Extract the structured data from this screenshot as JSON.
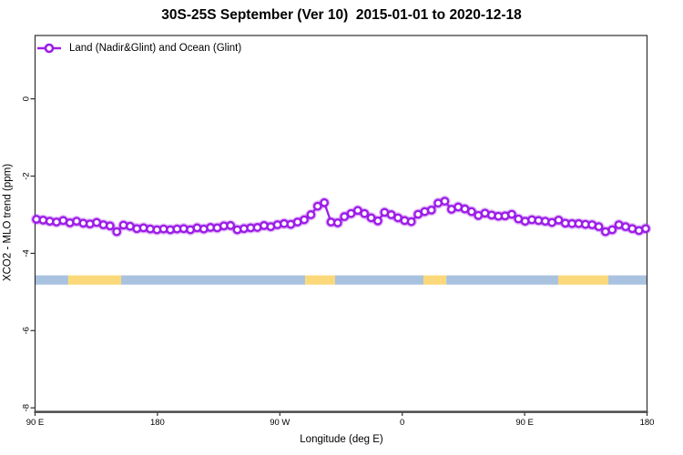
{
  "title": "30S-25S September (Ver 10)  2015-01-01 to 2020-12-18",
  "legend": {
    "label": "Land (Nadir&Glint) and Ocean (Glint)"
  },
  "colors": {
    "line": "#9D1DE8",
    "marker_fill": "#FFFFFF",
    "marker_halo": "rgba(157,29,232,0.28)",
    "band_blue": "#A9C2DF",
    "band_yellow": "#FBD97B",
    "axis": "#2E2E2E",
    "bottom_axis": "#4A4A4A"
  },
  "chart_data": {
    "type": "line",
    "title": "30S-25S September (Ver 10)  2015-01-01 to 2020-12-18",
    "xlabel": "Longitude (deg E)",
    "ylabel": "XCO2 - MLO trend (ppm)",
    "legend_position": "top-left",
    "grid": false,
    "x_axis": {
      "label": "Longitude (deg E)",
      "range": [
        0,
        450
      ],
      "ticks": [
        {
          "pos": 0,
          "label": "90 E"
        },
        {
          "pos": 90,
          "label": "180"
        },
        {
          "pos": 180,
          "label": "90 W"
        },
        {
          "pos": 270,
          "label": "0"
        },
        {
          "pos": 360,
          "label": "90 E"
        },
        {
          "pos": 450,
          "label": "180"
        }
      ]
    },
    "y_axis": {
      "label": "XCO2 - MLO trend (ppm)",
      "range": [
        -8.09,
        1.64
      ],
      "ticks": [
        0,
        -2,
        -4,
        -6,
        -8
      ],
      "tick_labels": [
        "0",
        "-2",
        "-4",
        "-6",
        "-8"
      ]
    },
    "series": [
      {
        "name": "Land (Nadir&Glint) and Ocean (Glint)",
        "color": "#9D1DE8",
        "marker": "open-circle",
        "x_start": 1.0,
        "x_step": 4.923,
        "values": [
          -3.12,
          -3.14,
          -3.17,
          -3.19,
          -3.15,
          -3.21,
          -3.17,
          -3.22,
          -3.24,
          -3.2,
          -3.26,
          -3.29,
          -3.44,
          -3.27,
          -3.3,
          -3.36,
          -3.34,
          -3.37,
          -3.39,
          -3.37,
          -3.39,
          -3.37,
          -3.36,
          -3.39,
          -3.34,
          -3.37,
          -3.33,
          -3.34,
          -3.29,
          -3.28,
          -3.39,
          -3.36,
          -3.34,
          -3.33,
          -3.28,
          -3.31,
          -3.26,
          -3.23,
          -3.25,
          -3.19,
          -3.13,
          -3.0,
          -2.78,
          -2.69,
          -3.19,
          -3.21,
          -3.05,
          -2.97,
          -2.89,
          -2.97,
          -3.08,
          -3.16,
          -2.94,
          -3.0,
          -3.08,
          -3.15,
          -3.18,
          -2.99,
          -2.92,
          -2.88,
          -2.7,
          -2.65,
          -2.86,
          -2.8,
          -2.85,
          -2.92,
          -3.02,
          -2.96,
          -3.01,
          -3.04,
          -3.03,
          -2.99,
          -3.11,
          -3.17,
          -3.13,
          -3.15,
          -3.17,
          -3.2,
          -3.14,
          -3.22,
          -3.23,
          -3.23,
          -3.25,
          -3.26,
          -3.31,
          -3.44,
          -3.39,
          -3.26,
          -3.31,
          -3.36,
          -3.41,
          -3.36
        ]
      }
    ],
    "band": {
      "y_top": -4.57,
      "y_bottom": -4.81,
      "segments": [
        {
          "from": 0,
          "to": 24.4,
          "color": "blue"
        },
        {
          "from": 24.4,
          "to": 63.3,
          "color": "yellow"
        },
        {
          "from": 63.3,
          "to": 198.6,
          "color": "blue"
        },
        {
          "from": 198.6,
          "to": 220.6,
          "color": "yellow"
        },
        {
          "from": 220.6,
          "to": 285.6,
          "color": "blue"
        },
        {
          "from": 285.6,
          "to": 302.4,
          "color": "yellow"
        },
        {
          "from": 302.4,
          "to": 384.7,
          "color": "blue"
        },
        {
          "from": 384.7,
          "to": 421.5,
          "color": "yellow"
        },
        {
          "from": 421.5,
          "to": 450,
          "color": "blue"
        }
      ]
    }
  }
}
